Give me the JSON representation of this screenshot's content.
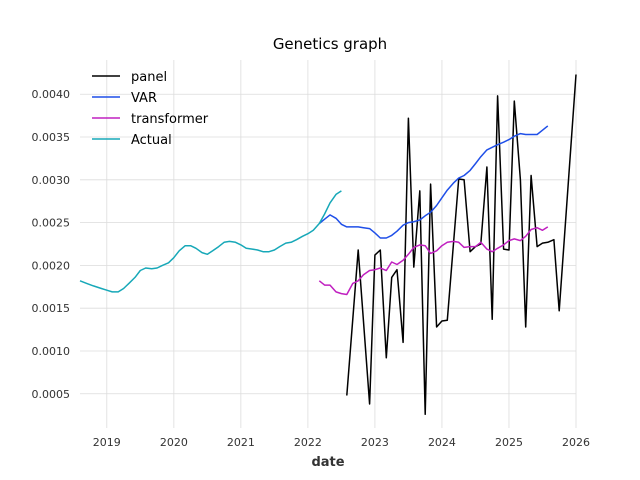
{
  "chart_data": {
    "type": "line",
    "title": "Genetics graph",
    "xlabel": "date",
    "ylabel": "",
    "xlim": [
      2018.6,
      2026.0
    ],
    "ylim": [
      0.0001,
      0.0044
    ],
    "x_ticks": [
      2019,
      2020,
      2021,
      2022,
      2023,
      2024,
      2025,
      2026
    ],
    "x_tick_labels": [
      "2019",
      "2020",
      "2021",
      "2022",
      "2023",
      "2024",
      "2025",
      "2026"
    ],
    "y_ticks": [
      0.0005,
      0.001,
      0.0015,
      0.002,
      0.0025,
      0.003,
      0.0035,
      0.004
    ],
    "y_tick_labels": [
      "0.0005",
      "0.0010",
      "0.0015",
      "0.0020",
      "0.0025",
      "0.0030",
      "0.0035",
      "0.0040"
    ],
    "grid": true,
    "legend_position": "top-left",
    "series": [
      {
        "name": "panel",
        "color": "#000000",
        "points": [
          [
            2022.58,
            0.00048
          ],
          [
            2022.75,
            0.00218
          ],
          [
            2022.92,
            0.00038
          ],
          [
            2023.0,
            0.00212
          ],
          [
            2023.08,
            0.00218
          ],
          [
            2023.17,
            0.00092
          ],
          [
            2023.25,
            0.00186
          ],
          [
            2023.33,
            0.00195
          ],
          [
            2023.42,
            0.0011
          ],
          [
            2023.5,
            0.00372
          ],
          [
            2023.58,
            0.00198
          ],
          [
            2023.67,
            0.00287
          ],
          [
            2023.75,
            0.00026
          ],
          [
            2023.83,
            0.00295
          ],
          [
            2023.92,
            0.00128
          ],
          [
            2024.0,
            0.00135
          ],
          [
            2024.08,
            0.00136
          ],
          [
            2024.25,
            0.00301
          ],
          [
            2024.33,
            0.003
          ],
          [
            2024.42,
            0.00216
          ],
          [
            2024.5,
            0.00222
          ],
          [
            2024.58,
            0.00225
          ],
          [
            2024.67,
            0.00315
          ],
          [
            2024.75,
            0.00137
          ],
          [
            2024.83,
            0.00398
          ],
          [
            2024.92,
            0.00219
          ],
          [
            2025.0,
            0.00218
          ],
          [
            2025.08,
            0.00392
          ],
          [
            2025.17,
            0.003
          ],
          [
            2025.25,
            0.00128
          ],
          [
            2025.33,
            0.00305
          ],
          [
            2025.42,
            0.00222
          ],
          [
            2025.5,
            0.00226
          ],
          [
            2025.58,
            0.00227
          ],
          [
            2025.67,
            0.0023
          ],
          [
            2025.75,
            0.00147
          ],
          [
            2026.0,
            0.00423
          ]
        ]
      },
      {
        "name": "VAR",
        "color": "#1f4fe8",
        "points": [
          [
            2022.17,
            0.00249
          ],
          [
            2022.25,
            0.00254
          ],
          [
            2022.33,
            0.00259
          ],
          [
            2022.42,
            0.00255
          ],
          [
            2022.5,
            0.00248
          ],
          [
            2022.58,
            0.00245
          ],
          [
            2022.67,
            0.00245
          ],
          [
            2022.75,
            0.00245
          ],
          [
            2022.83,
            0.00244
          ],
          [
            2022.92,
            0.00243
          ],
          [
            2023.0,
            0.00238
          ],
          [
            2023.08,
            0.00232
          ],
          [
            2023.17,
            0.00232
          ],
          [
            2023.25,
            0.00235
          ],
          [
            2023.33,
            0.0024
          ],
          [
            2023.42,
            0.00247
          ],
          [
            2023.5,
            0.0025
          ],
          [
            2023.58,
            0.00251
          ],
          [
            2023.67,
            0.00253
          ],
          [
            2023.75,
            0.00258
          ],
          [
            2023.83,
            0.00262
          ],
          [
            2023.92,
            0.0027
          ],
          [
            2024.0,
            0.00279
          ],
          [
            2024.08,
            0.00288
          ],
          [
            2024.17,
            0.00296
          ],
          [
            2024.25,
            0.00302
          ],
          [
            2024.33,
            0.00305
          ],
          [
            2024.42,
            0.00311
          ],
          [
            2024.5,
            0.00319
          ],
          [
            2024.58,
            0.00327
          ],
          [
            2024.67,
            0.00335
          ],
          [
            2024.75,
            0.00338
          ],
          [
            2024.83,
            0.00341
          ],
          [
            2024.92,
            0.00344
          ],
          [
            2025.0,
            0.00347
          ],
          [
            2025.08,
            0.00351
          ],
          [
            2025.17,
            0.00354
          ],
          [
            2025.25,
            0.00353
          ],
          [
            2025.33,
            0.00353
          ],
          [
            2025.42,
            0.00353
          ],
          [
            2025.5,
            0.00358
          ],
          [
            2025.58,
            0.00363
          ]
        ]
      },
      {
        "name": "transformer",
        "color": "#c020c0",
        "points": [
          [
            2022.17,
            0.00182
          ],
          [
            2022.25,
            0.00177
          ],
          [
            2022.33,
            0.00177
          ],
          [
            2022.42,
            0.00169
          ],
          [
            2022.5,
            0.00167
          ],
          [
            2022.58,
            0.00166
          ],
          [
            2022.67,
            0.00179
          ],
          [
            2022.75,
            0.00182
          ],
          [
            2022.83,
            0.00189
          ],
          [
            2022.92,
            0.00194
          ],
          [
            2023.0,
            0.00195
          ],
          [
            2023.08,
            0.00197
          ],
          [
            2023.17,
            0.00194
          ],
          [
            2023.25,
            0.00204
          ],
          [
            2023.33,
            0.00201
          ],
          [
            2023.42,
            0.00206
          ],
          [
            2023.5,
            0.00213
          ],
          [
            2023.58,
            0.00221
          ],
          [
            2023.67,
            0.00224
          ],
          [
            2023.75,
            0.00223
          ],
          [
            2023.83,
            0.00214
          ],
          [
            2023.92,
            0.00217
          ],
          [
            2024.0,
            0.00223
          ],
          [
            2024.08,
            0.00227
          ],
          [
            2024.17,
            0.00228
          ],
          [
            2024.25,
            0.00227
          ],
          [
            2024.33,
            0.00221
          ],
          [
            2024.42,
            0.00222
          ],
          [
            2024.5,
            0.00222
          ],
          [
            2024.58,
            0.00227
          ],
          [
            2024.67,
            0.00219
          ],
          [
            2024.75,
            0.00216
          ],
          [
            2024.83,
            0.0022
          ],
          [
            2024.92,
            0.00224
          ],
          [
            2025.0,
            0.00229
          ],
          [
            2025.08,
            0.00231
          ],
          [
            2025.17,
            0.00229
          ],
          [
            2025.25,
            0.00234
          ],
          [
            2025.33,
            0.00242
          ],
          [
            2025.42,
            0.00244
          ],
          [
            2025.5,
            0.00241
          ],
          [
            2025.58,
            0.00245
          ]
        ]
      },
      {
        "name": "Actual",
        "color": "#17a8b8",
        "points": [
          [
            2018.6,
            0.00182
          ],
          [
            2018.7,
            0.00179
          ],
          [
            2018.8,
            0.00176
          ],
          [
            2018.92,
            0.00173
          ],
          [
            2019.0,
            0.00171
          ],
          [
            2019.08,
            0.00169
          ],
          [
            2019.17,
            0.00169
          ],
          [
            2019.25,
            0.00173
          ],
          [
            2019.33,
            0.00179
          ],
          [
            2019.42,
            0.00186
          ],
          [
            2019.5,
            0.00194
          ],
          [
            2019.58,
            0.00197
          ],
          [
            2019.67,
            0.00196
          ],
          [
            2019.75,
            0.00197
          ],
          [
            2019.83,
            0.002
          ],
          [
            2019.92,
            0.00203
          ],
          [
            2020.0,
            0.00209
          ],
          [
            2020.08,
            0.00217
          ],
          [
            2020.17,
            0.00223
          ],
          [
            2020.25,
            0.00223
          ],
          [
            2020.33,
            0.0022
          ],
          [
            2020.42,
            0.00215
          ],
          [
            2020.5,
            0.00213
          ],
          [
            2020.58,
            0.00217
          ],
          [
            2020.67,
            0.00222
          ],
          [
            2020.75,
            0.00227
          ],
          [
            2020.83,
            0.00228
          ],
          [
            2020.92,
            0.00227
          ],
          [
            2021.0,
            0.00224
          ],
          [
            2021.08,
            0.0022
          ],
          [
            2021.17,
            0.00219
          ],
          [
            2021.25,
            0.00218
          ],
          [
            2021.33,
            0.00216
          ],
          [
            2021.42,
            0.00216
          ],
          [
            2021.5,
            0.00218
          ],
          [
            2021.58,
            0.00222
          ],
          [
            2021.67,
            0.00226
          ],
          [
            2021.75,
            0.00227
          ],
          [
            2021.83,
            0.0023
          ],
          [
            2021.92,
            0.00234
          ],
          [
            2022.0,
            0.00237
          ],
          [
            2022.08,
            0.00241
          ],
          [
            2022.17,
            0.00249
          ],
          [
            2022.25,
            0.0026
          ],
          [
            2022.33,
            0.00273
          ],
          [
            2022.42,
            0.00283
          ],
          [
            2022.5,
            0.00287
          ]
        ]
      }
    ]
  }
}
